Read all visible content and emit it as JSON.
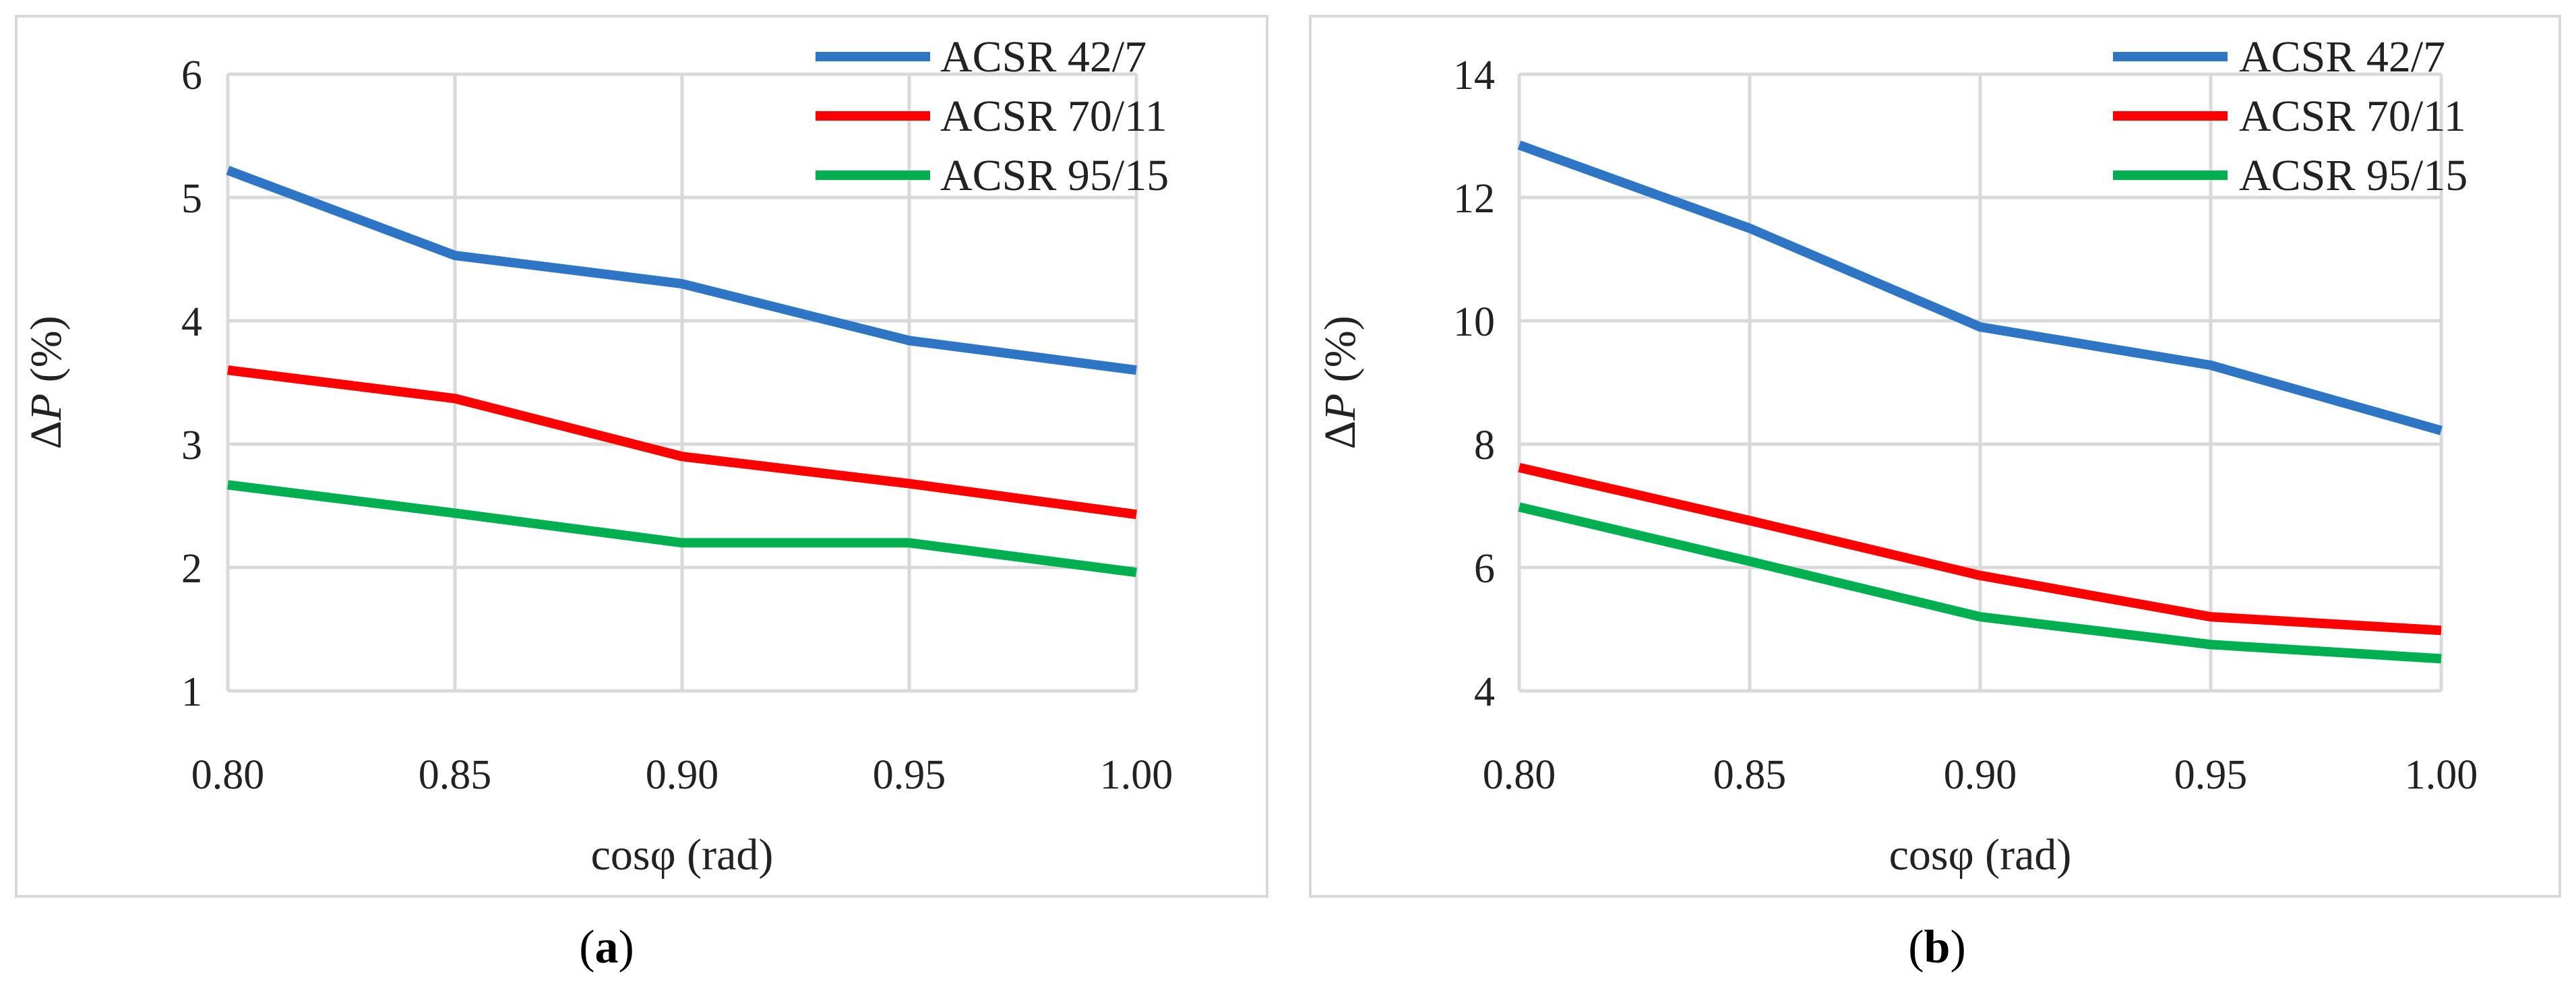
{
  "chart_data": [
    {
      "type": "line",
      "panel_caption": "a",
      "xlabel": "cosφ (rad)",
      "ylabel_symbol": "P",
      "ylabel_prefix": "Δ",
      "ylabel_suffix": " (%)",
      "x": [
        0.8,
        0.85,
        0.9,
        0.95,
        1.0
      ],
      "x_tick_labels": [
        "0.80",
        "0.85",
        "0.90",
        "0.95",
        "1.00"
      ],
      "ylim": [
        1,
        6
      ],
      "y_ticks": [
        1,
        2,
        3,
        4,
        5,
        6
      ],
      "grid": true,
      "legend_position": "top-right",
      "series": [
        {
          "name": "ACSR 42/7",
          "color": "#2e75c6",
          "values": [
            5.22,
            4.53,
            4.3,
            3.84,
            3.6
          ]
        },
        {
          "name": "ACSR 70/11",
          "color": "#ff0000",
          "values": [
            3.6,
            3.37,
            2.9,
            2.68,
            2.43
          ]
        },
        {
          "name": "ACSR 95/15",
          "color": "#00b050",
          "values": [
            2.67,
            2.44,
            2.2,
            2.2,
            1.96
          ]
        }
      ]
    },
    {
      "type": "line",
      "panel_caption": "b",
      "xlabel": "cosφ (rad)",
      "ylabel_symbol": "P",
      "ylabel_prefix": "Δ",
      "ylabel_suffix": " (%)",
      "x": [
        0.8,
        0.85,
        0.9,
        0.95,
        1.0
      ],
      "x_tick_labels": [
        "0.80",
        "0.85",
        "0.90",
        "0.95",
        "1.00"
      ],
      "ylim": [
        4,
        14
      ],
      "y_ticks": [
        4,
        6,
        8,
        10,
        12,
        14
      ],
      "grid": true,
      "legend_position": "top-right",
      "series": [
        {
          "name": "ACSR 42/7",
          "color": "#2e75c6",
          "values": [
            12.85,
            11.5,
            9.9,
            9.28,
            8.22
          ]
        },
        {
          "name": "ACSR 70/11",
          "color": "#ff0000",
          "values": [
            7.62,
            6.76,
            5.87,
            5.2,
            4.98
          ]
        },
        {
          "name": "ACSR 95/15",
          "color": "#00b050",
          "values": [
            6.98,
            6.1,
            5.2,
            4.75,
            4.52
          ]
        }
      ]
    }
  ]
}
